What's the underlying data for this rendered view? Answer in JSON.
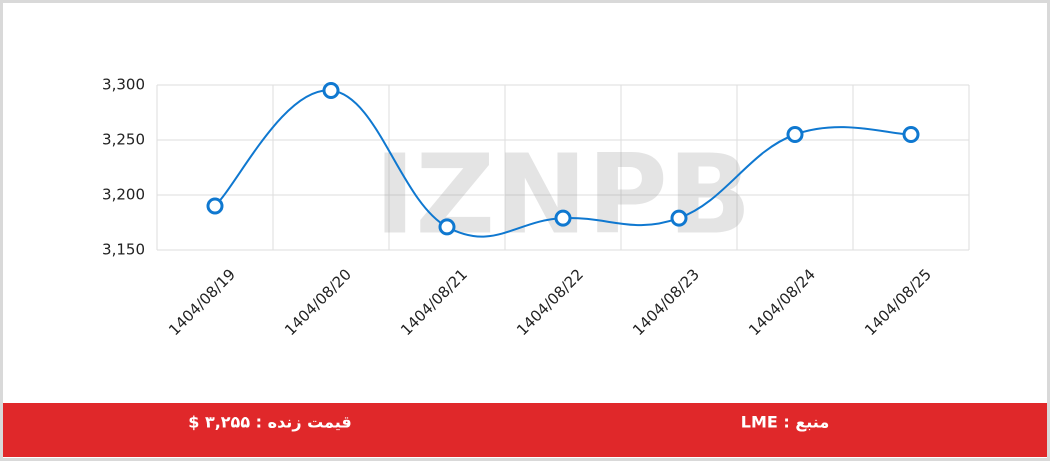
{
  "chart_data": {
    "type": "line",
    "watermark": "IZNPB",
    "categories": [
      "1404/08/19",
      "1404/08/20",
      "1404/08/21",
      "1404/08/22",
      "1404/08/23",
      "1404/08/24",
      "1404/08/25"
    ],
    "series": [
      {
        "name": "LME",
        "color": "#0f78d0",
        "values": [
          3190,
          3295,
          3171,
          3179,
          3179,
          3255,
          3255
        ]
      }
    ],
    "ylim": [
      3150,
      3300
    ],
    "yticks": [
      {
        "value": 3150,
        "label": "3,150"
      },
      {
        "value": 3200,
        "label": "3,200"
      },
      {
        "value": 3250,
        "label": "3,250"
      },
      {
        "value": 3300,
        "label": "3,300"
      }
    ],
    "grid": true
  },
  "footer": {
    "source": "منبع : LME",
    "live_price": "قیمت زنده : ۳,۲۵۵ $"
  }
}
